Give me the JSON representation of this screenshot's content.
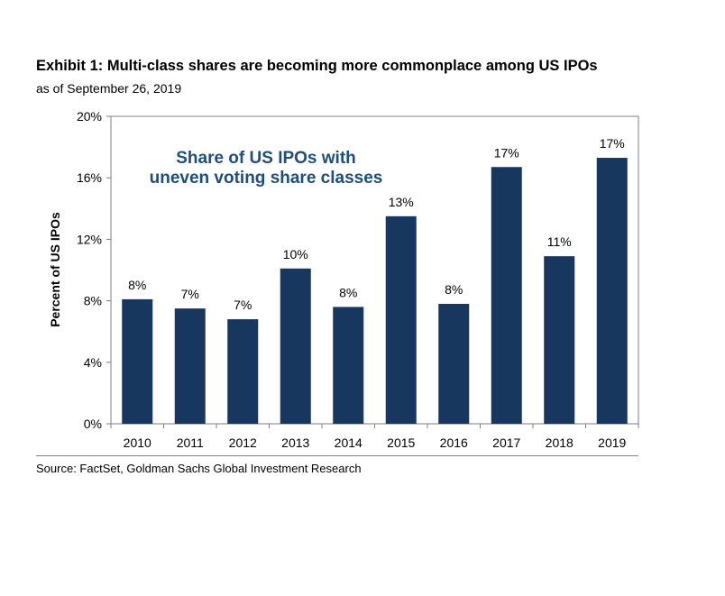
{
  "header": {
    "title": "Exhibit 1: Multi-class shares are becoming more commonplace among US IPOs",
    "subtitle": "as of September 26, 2019"
  },
  "footer": {
    "source": "Source: FactSet, Goldman Sachs Global Investment Research"
  },
  "colors": {
    "bar": "#17375e",
    "annotation": "#1f4e79",
    "axis": "#7f7f7f"
  },
  "chart_data": {
    "type": "bar",
    "title": "",
    "annotation": [
      "Share of US IPOs with",
      "uneven voting share classes"
    ],
    "xlabel": "",
    "ylabel": "Percent of US IPOs",
    "ylim": [
      0,
      20
    ],
    "yticks": [
      0,
      4,
      8,
      12,
      16,
      20
    ],
    "ytick_labels": [
      "0%",
      "4%",
      "8%",
      "12%",
      "16%",
      "20%"
    ],
    "categories": [
      "2010",
      "2011",
      "2012",
      "2013",
      "2014",
      "2015",
      "2016",
      "2017",
      "2018",
      "2019"
    ],
    "values": [
      8.1,
      7.5,
      6.8,
      10.1,
      7.6,
      13.5,
      7.8,
      16.7,
      10.9,
      17.3
    ],
    "data_labels": [
      "8%",
      "7%",
      "7%",
      "10%",
      "8%",
      "13%",
      "8%",
      "17%",
      "11%",
      "17%"
    ],
    "grid": false,
    "legend": "none"
  }
}
